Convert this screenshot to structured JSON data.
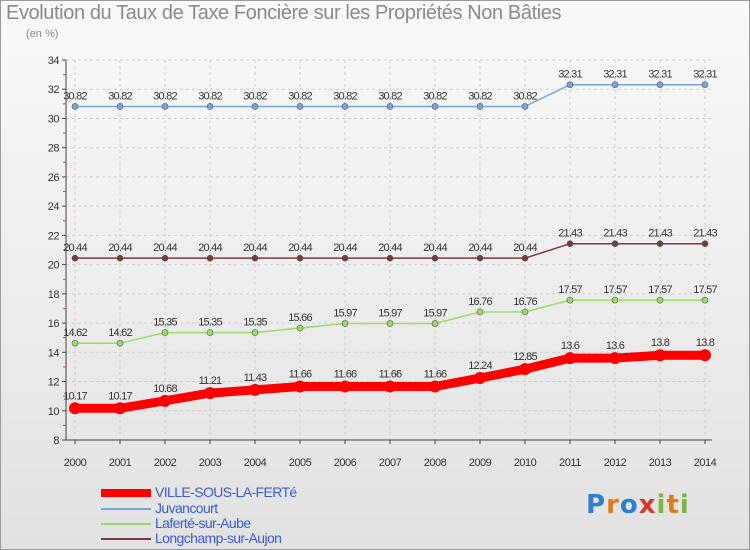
{
  "title": "Evolution du Taux de Taxe Foncière sur les Propriétés Non Bâties",
  "subtitle": "(en %)",
  "logo": {
    "text": [
      "P",
      "r",
      "o",
      "x",
      "i",
      "t",
      "i"
    ],
    "colors": [
      "#2f7fd0",
      "#e07a1f",
      "#2f7fd0",
      "#d23a2a",
      "#7ab83a",
      "#e07a1f",
      "#7ab83a"
    ]
  },
  "chart_data": {
    "type": "line",
    "x": [
      "2000",
      "2001",
      "2002",
      "2003",
      "2004",
      "2005",
      "2006",
      "2007",
      "2008",
      "2009",
      "2010",
      "2011",
      "2012",
      "2013",
      "2014"
    ],
    "ylim": [
      8,
      34
    ],
    "yticks": [
      "8",
      "10",
      "12",
      "14",
      "16",
      "18",
      "20",
      "22",
      "24",
      "26",
      "28",
      "30",
      "32",
      "34"
    ],
    "grid": true,
    "legend_position": "bottom-left",
    "series": [
      {
        "name": "VILLE-SOUS-LA-FERTé",
        "color": "#ff0000",
        "values": [
          10.17,
          10.17,
          10.68,
          11.21,
          11.43,
          11.66,
          11.66,
          11.66,
          11.66,
          12.24,
          12.85,
          13.6,
          13.6,
          13.8,
          13.8
        ],
        "labels": [
          "10.17",
          "10.17",
          "10.68",
          "11.21",
          "11.43",
          "11.66",
          "11.66",
          "11.66",
          "11.66",
          "12.24",
          "12.85",
          "13.6",
          "13.6",
          "13.8",
          "13.8"
        ]
      },
      {
        "name": "Juvancourt",
        "color": "#7aa6d6",
        "values": [
          30.82,
          30.82,
          30.82,
          30.82,
          30.82,
          30.82,
          30.82,
          30.82,
          30.82,
          30.82,
          30.82,
          32.31,
          32.31,
          32.31,
          32.31
        ],
        "labels": [
          "30.82",
          "30.82",
          "30.82",
          "30.82",
          "30.82",
          "30.82",
          "30.82",
          "30.82",
          "30.82",
          "30.82",
          "30.82",
          "32.31",
          "32.31",
          "32.31",
          "32.31"
        ]
      },
      {
        "name": "Laferté-sur-Aube",
        "color": "#99dd66",
        "values": [
          14.62,
          14.62,
          15.35,
          15.35,
          15.35,
          15.66,
          15.97,
          15.97,
          15.97,
          16.76,
          16.76,
          17.57,
          17.57,
          17.57,
          17.57
        ],
        "labels": [
          "14.62",
          "14.62",
          "15.35",
          "15.35",
          "15.35",
          "15.66",
          "15.97",
          "15.97",
          "15.97",
          "16.76",
          "16.76",
          "17.57",
          "17.57",
          "17.57",
          "17.57"
        ]
      },
      {
        "name": "Longchamp-sur-Aujon",
        "color": "#7a3a3a",
        "values": [
          20.44,
          20.44,
          20.44,
          20.44,
          20.44,
          20.44,
          20.44,
          20.44,
          20.44,
          20.44,
          20.44,
          21.43,
          21.43,
          21.43,
          21.43
        ],
        "labels": [
          "20.44",
          "20.44",
          "20.44",
          "20.44",
          "20.44",
          "20.44",
          "20.44",
          "20.44",
          "20.44",
          "20.44",
          "20.44",
          "21.43",
          "21.43",
          "21.43",
          "21.43"
        ]
      }
    ]
  }
}
